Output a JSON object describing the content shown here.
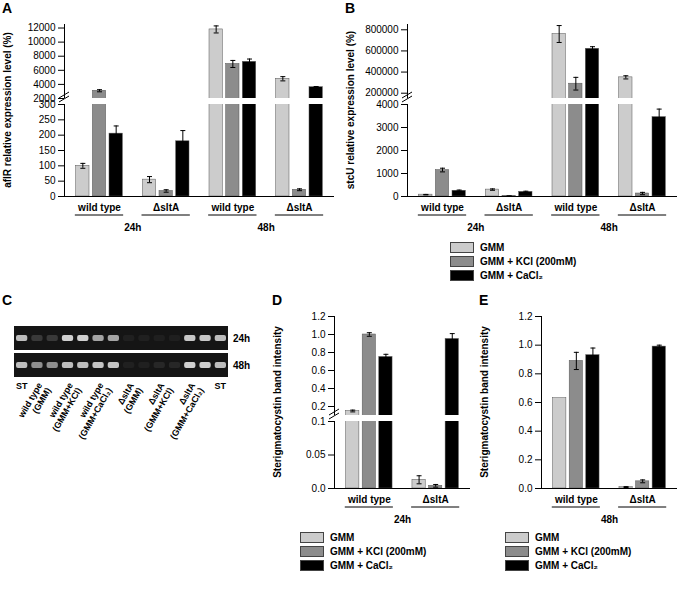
{
  "chart_data": [
    {
      "title": "A",
      "type": "bar",
      "y_label": "aflR relative expression level (%)",
      "categories": [
        "wild type",
        "ΔsltA",
        "wild type",
        "ΔsltA"
      ],
      "periods": [
        "24h",
        "24h",
        "48h",
        "48h"
      ],
      "series": [
        {
          "name": "GMM",
          "color": "#cccccc",
          "values": [
            100,
            55,
            11800,
            4800
          ],
          "errors": [
            8,
            10,
            500,
            300
          ]
        },
        {
          "name": "GMM + KCl (200mM)",
          "color": "#8c8c8c",
          "values": [
            3100,
            18,
            6900,
            22
          ],
          "errors": [
            150,
            4,
            500,
            3
          ]
        },
        {
          "name": "GMM + CaCl₂",
          "color": "#000000",
          "values": [
            205,
            180,
            7200,
            3600
          ],
          "errors": [
            25,
            35,
            400,
            100
          ]
        }
      ],
      "segments": [
        {
          "ylim": [
            0,
            300
          ],
          "yticks": [
            0,
            50,
            100,
            150,
            200,
            250,
            300
          ]
        },
        {
          "ylim": [
            2000,
            12500
          ],
          "yticks": [
            2000,
            4000,
            6000,
            8000,
            10000,
            12000
          ]
        }
      ]
    },
    {
      "title": "B",
      "type": "bar",
      "y_label": "stcU relative expression level (%)",
      "categories": [
        "wild type",
        "ΔsltA",
        "wild type",
        "ΔsltA"
      ],
      "periods": [
        "24h",
        "24h",
        "48h",
        "48h"
      ],
      "series": [
        {
          "name": "GMM",
          "color": "#cccccc",
          "values": [
            80,
            300,
            760000,
            350000
          ],
          "errors": [
            10,
            30,
            80000,
            15000
          ]
        },
        {
          "name": "GMM + KCl (200mM)",
          "color": "#8c8c8c",
          "values": [
            1150,
            20,
            290000,
            130
          ],
          "errors": [
            80,
            5,
            60000,
            50
          ]
        },
        {
          "name": "GMM + CaCl₂",
          "color": "#000000",
          "values": [
            250,
            200,
            620000,
            3450
          ],
          "errors": [
            30,
            30,
            20000,
            350
          ]
        }
      ],
      "segments": [
        {
          "ylim": [
            0,
            4000
          ],
          "yticks": [
            0,
            1000,
            2000,
            3000,
            4000
          ]
        },
        {
          "ylim": [
            150000,
            850000
          ],
          "yticks": [
            200000,
            400000,
            600000,
            800000
          ]
        }
      ],
      "legend": "bottom"
    },
    {
      "title": "C",
      "type": "gel",
      "lanes": [
        "wild type\n(GMM)",
        "wild type\n(GMM+KCl)",
        "wild type\n(GMM+CaCl₂)",
        "ΔsltA\n(GMM)",
        "ΔsltA\n(GMM+KCl)",
        "ΔsltA\n(GMM+CaCl₂)"
      ],
      "rows": [
        "24h",
        "48h"
      ],
      "standard": "ST"
    },
    {
      "title": "D",
      "type": "bar",
      "y_label": "Sterigmatocystin band intensity",
      "categories": [
        "wild type",
        "ΔsltA"
      ],
      "periods": [
        "24h",
        "24h"
      ],
      "series": [
        {
          "name": "GMM",
          "color": "#cccccc",
          "values": [
            0.15,
            0.013
          ],
          "errors": [
            0.01,
            0.006
          ]
        },
        {
          "name": "GMM + KCl (200mM)",
          "color": "#8c8c8c",
          "values": [
            1.0,
            0.004
          ],
          "errors": [
            0.02,
            0.002
          ]
        },
        {
          "name": "GMM + CaCl₂",
          "color": "#000000",
          "values": [
            0.75,
            0.95
          ],
          "errors": [
            0.03,
            0.06
          ]
        }
      ],
      "segments": [
        {
          "ylim": [
            0,
            0.1
          ],
          "yticks": [
            {
              "value": 0,
              "label": "0.0"
            },
            0.05,
            0.1
          ]
        },
        {
          "ylim": [
            0.1,
            1.2
          ],
          "yticks": [
            0.2,
            0.4,
            0.6,
            0.8,
            {
              "value": 1,
              "label": "1.0"
            },
            1.2
          ]
        }
      ],
      "legend": "bottom"
    },
    {
      "title": "E",
      "type": "bar",
      "y_label": "Sterigmatocystin band intensity",
      "categories": [
        "wild type",
        "ΔsltA"
      ],
      "periods": [
        "48h",
        "48h"
      ],
      "series": [
        {
          "name": "GMM",
          "color": "#cccccc",
          "values": [
            0.63,
            0.01
          ],
          "errors": [
            null,
            0.003
          ]
        },
        {
          "name": "GMM + KCl (200mM)",
          "color": "#8c8c8c",
          "values": [
            0.89,
            0.05
          ],
          "errors": [
            0.06,
            0.01
          ]
        },
        {
          "name": "GMM + CaCl₂",
          "color": "#000000",
          "values": [
            0.93,
            0.99
          ],
          "errors": [
            0.05,
            0.01
          ]
        }
      ],
      "ylim": [
        0,
        1.2
      ],
      "yticks": [
        {
          "value": 0,
          "label": "0.0"
        },
        0.2,
        0.4,
        0.6,
        0.8,
        {
          "value": 1,
          "label": "1.0"
        },
        1.2
      ],
      "legend": "bottom"
    }
  ]
}
